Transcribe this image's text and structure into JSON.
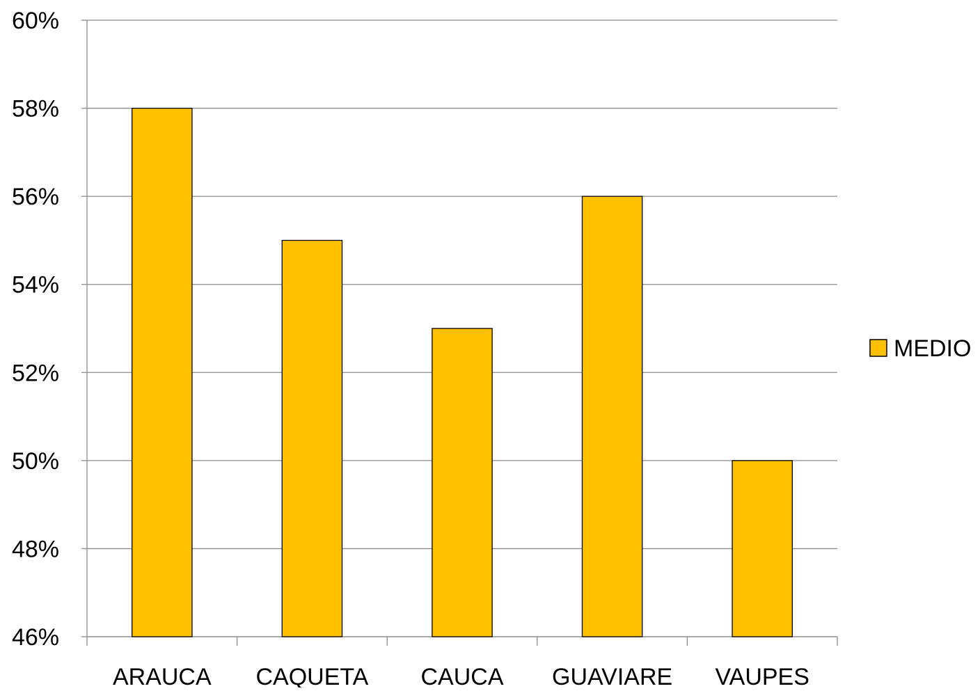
{
  "chart_data": {
    "type": "bar",
    "categories": [
      "ARAUCA",
      "CAQUETA",
      "CAUCA",
      "GUAVIARE",
      "VAUPES"
    ],
    "series": [
      {
        "name": "MEDIO",
        "values": [
          58,
          55,
          53,
          56,
          50
        ],
        "color": "#FFC000"
      }
    ],
    "ylim": [
      46,
      60
    ],
    "yticks": [
      46,
      48,
      50,
      52,
      54,
      56,
      58,
      60
    ],
    "ytick_labels": [
      "46%",
      "48%",
      "50%",
      "52%",
      "54%",
      "56%",
      "58%",
      "60%"
    ],
    "grid": true,
    "legend_position": "right",
    "title": "",
    "xlabel": "",
    "ylabel": ""
  },
  "colors": {
    "bar_fill": "#FFC000",
    "bar_stroke": "#000000",
    "grid": "#8c8c8c",
    "axis": "#8c8c8c"
  }
}
